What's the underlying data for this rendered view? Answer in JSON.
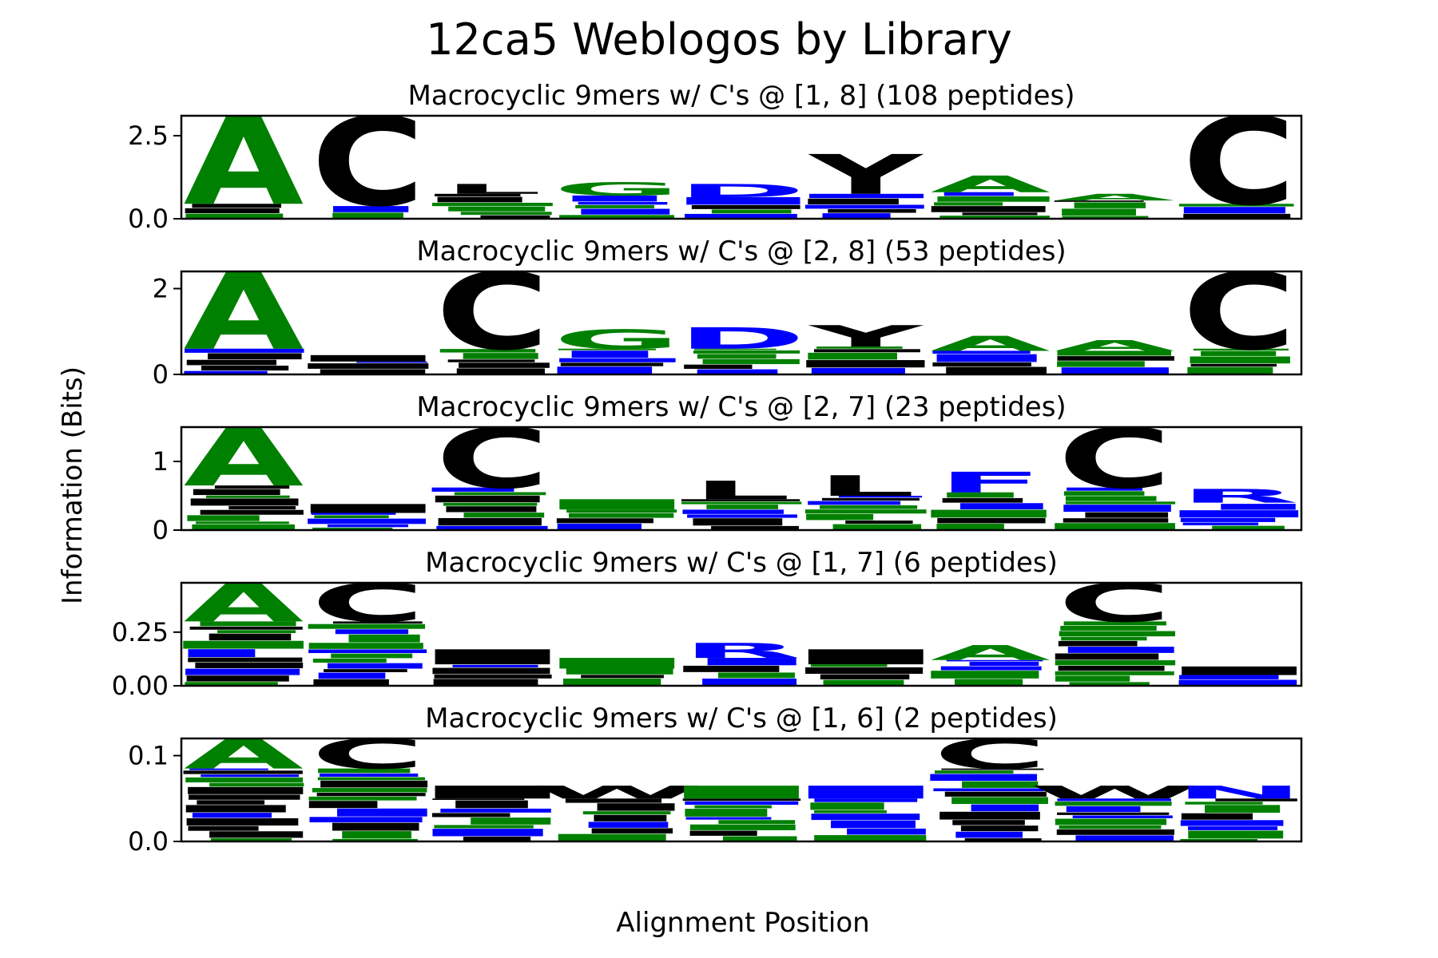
{
  "title": "12ca5 Weblogos by Library",
  "xlabel": "Alignment Position",
  "ylabel": "Information (Bits)",
  "colors": {
    "green": "#008000",
    "blue": "#0000ff",
    "black": "#000000",
    "frame": "#000000"
  },
  "chart_data": [
    {
      "type": "sequence-logo",
      "title": "Macrocyclic 9mers w/ C's @ [1, 8] (108 peptides)",
      "ylim": [
        0,
        3.1
      ],
      "yticks": [
        "0.0",
        "2.5"
      ],
      "ytick_values": [
        0,
        2.5
      ],
      "positions": [
        {
          "letter": "A",
          "color": "green",
          "top": 3.1,
          "base": 0.45
        },
        {
          "letter": "C",
          "color": "black",
          "top": 3.1,
          "base": 0.42
        },
        {
          "letter": "L",
          "color": "black",
          "top": 1.05,
          "base": 0.75
        },
        {
          "letter": "G",
          "color": "green",
          "top": 1.1,
          "base": 0.7
        },
        {
          "letter": "D",
          "color": "blue",
          "top": 1.05,
          "base": 0.65
        },
        {
          "letter": "Y",
          "color": "black",
          "top": 1.95,
          "base": 0.75
        },
        {
          "letter": "A",
          "color": "green",
          "top": 1.3,
          "base": 0.8
        },
        {
          "letter": "A",
          "color": "green",
          "top": 0.75,
          "base": 0.55
        },
        {
          "letter": "C",
          "color": "black",
          "top": 3.1,
          "base": 0.45
        }
      ]
    },
    {
      "type": "sequence-logo",
      "title": "Macrocyclic 9mers w/ C's @ [2, 8] (53 peptides)",
      "ylim": [
        0,
        2.4
      ],
      "yticks": [
        "0",
        "2"
      ],
      "ytick_values": [
        0,
        2
      ],
      "positions": [
        {
          "letter": "A",
          "color": "green",
          "top": 2.4,
          "base": 0.6
        },
        {
          "letter": "",
          "color": "black",
          "top": 0.45,
          "base": 0.3
        },
        {
          "letter": "C",
          "color": "black",
          "top": 2.4,
          "base": 0.6
        },
        {
          "letter": "G",
          "color": "green",
          "top": 1.05,
          "base": 0.6
        },
        {
          "letter": "D",
          "color": "blue",
          "top": 1.1,
          "base": 0.6
        },
        {
          "letter": "Y",
          "color": "black",
          "top": 1.15,
          "base": 0.65
        },
        {
          "letter": "A",
          "color": "green",
          "top": 0.9,
          "base": 0.55
        },
        {
          "letter": "A",
          "color": "green",
          "top": 0.8,
          "base": 0.55
        },
        {
          "letter": "C",
          "color": "black",
          "top": 2.4,
          "base": 0.6
        }
      ]
    },
    {
      "type": "sequence-logo",
      "title": "Macrocyclic 9mers w/ C's @ [2, 7] (23 peptides)",
      "ylim": [
        0,
        1.5
      ],
      "yticks": [
        "0",
        "1"
      ],
      "ytick_values": [
        0,
        1
      ],
      "positions": [
        {
          "letter": "A",
          "color": "green",
          "top": 1.5,
          "base": 0.65
        },
        {
          "letter": "",
          "color": "black",
          "top": 0.38,
          "base": 0.25
        },
        {
          "letter": "C",
          "color": "black",
          "top": 1.5,
          "base": 0.62
        },
        {
          "letter": "",
          "color": "green",
          "top": 0.45,
          "base": 0.3
        },
        {
          "letter": "L",
          "color": "black",
          "top": 0.72,
          "base": 0.45
        },
        {
          "letter": "L",
          "color": "black",
          "top": 0.8,
          "base": 0.5
        },
        {
          "letter": "F",
          "color": "blue",
          "top": 0.85,
          "base": 0.55
        },
        {
          "letter": "C",
          "color": "black",
          "top": 1.5,
          "base": 0.62
        },
        {
          "letter": "R",
          "color": "blue",
          "top": 0.6,
          "base": 0.4
        }
      ]
    },
    {
      "type": "sequence-logo",
      "title": "Macrocyclic 9mers w/ C's @ [1, 7] (6 peptides)",
      "ylim": [
        0,
        0.48
      ],
      "yticks": [
        "0.00",
        "0.25"
      ],
      "ytick_values": [
        0,
        0.25
      ],
      "positions": [
        {
          "letter": "A",
          "color": "green",
          "top": 0.48,
          "base": 0.3
        },
        {
          "letter": "C",
          "color": "black",
          "top": 0.48,
          "base": 0.3
        },
        {
          "letter": "",
          "color": "black",
          "top": 0.17,
          "base": 0.1
        },
        {
          "letter": "",
          "color": "green",
          "top": 0.13,
          "base": 0.08
        },
        {
          "letter": "R",
          "color": "blue",
          "top": 0.2,
          "base": 0.13
        },
        {
          "letter": "",
          "color": "black",
          "top": 0.17,
          "base": 0.1
        },
        {
          "letter": "A",
          "color": "green",
          "top": 0.19,
          "base": 0.12
        },
        {
          "letter": "C",
          "color": "black",
          "top": 0.48,
          "base": 0.3
        },
        {
          "letter": "",
          "color": "black",
          "top": 0.09,
          "base": 0.05
        }
      ]
    },
    {
      "type": "sequence-logo",
      "title": "Macrocyclic 9mers w/ C's @ [1, 6] (2 peptides)",
      "ylim": [
        0,
        0.12
      ],
      "yticks": [
        "0.0",
        "0.1"
      ],
      "ytick_values": [
        0,
        0.1
      ],
      "positions": [
        {
          "letter": "A",
          "color": "green",
          "top": 0.12,
          "base": 0.085
        },
        {
          "letter": "C",
          "color": "black",
          "top": 0.12,
          "base": 0.085
        },
        {
          "letter": "",
          "color": "black",
          "top": 0.065,
          "base": 0.05
        },
        {
          "letter": "W",
          "color": "black",
          "top": 0.065,
          "base": 0.05
        },
        {
          "letter": "",
          "color": "green",
          "top": 0.065,
          "base": 0.05
        },
        {
          "letter": "",
          "color": "blue",
          "top": 0.065,
          "base": 0.05
        },
        {
          "letter": "C",
          "color": "black",
          "top": 0.12,
          "base": 0.085
        },
        {
          "letter": "W",
          "color": "black",
          "top": 0.065,
          "base": 0.05
        },
        {
          "letter": "N",
          "color": "blue",
          "top": 0.065,
          "base": 0.05
        }
      ]
    }
  ]
}
